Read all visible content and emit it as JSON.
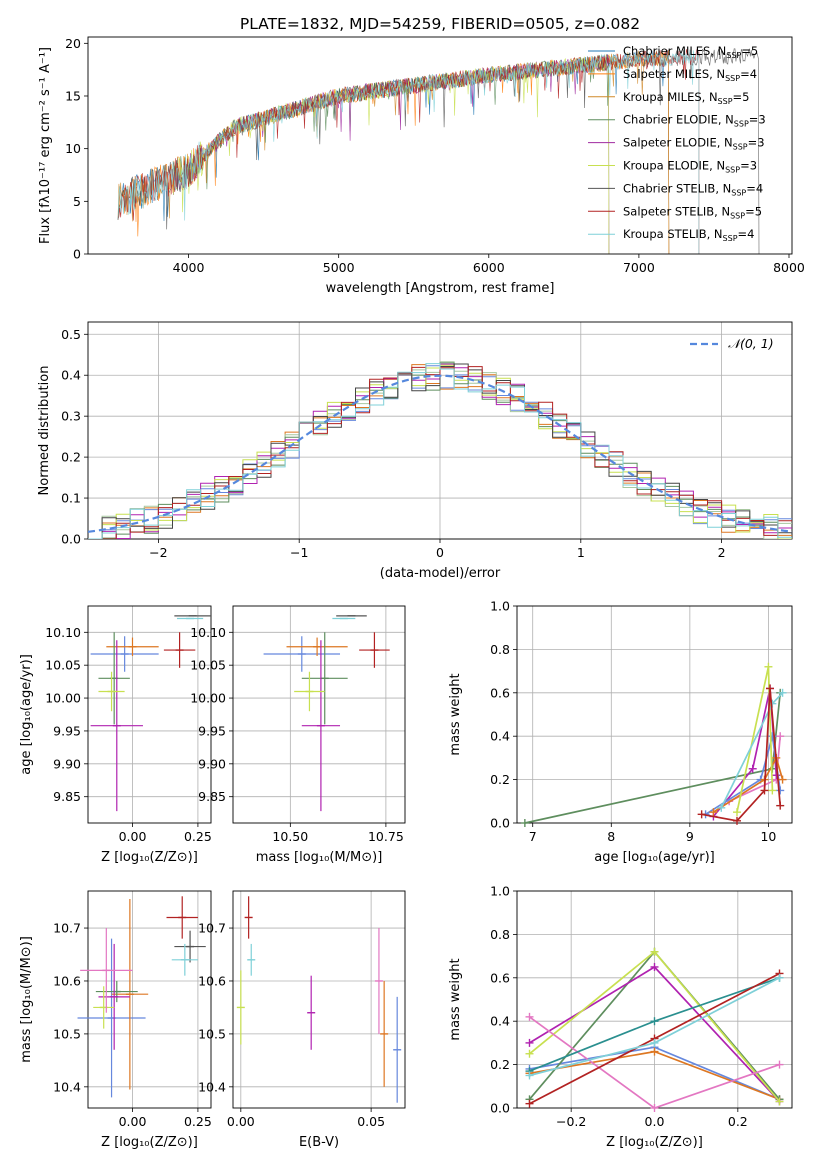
{
  "figure": {
    "title": "PLATE=1832, MJD=54259, FIBERID=0505, z=0.082"
  },
  "chart_data": [
    {
      "id": "spectrum",
      "type": "line",
      "xlabel": "wavelength [Angstrom, rest frame]",
      "ylabel": "Flux [fλ10⁻¹⁷ erg cm⁻² s⁻¹ A⁻¹]",
      "xlim": [
        3330,
        8020
      ],
      "ylim": [
        0,
        20.6
      ],
      "xticks": [
        4000,
        5000,
        6000,
        7000,
        8000
      ],
      "yticks": [
        0,
        5,
        10,
        15,
        20
      ],
      "grid": false,
      "legend_position": "right",
      "series": [
        {
          "name": "Chabrier MILES, N",
          "sub": "SSP",
          "tail": "=5",
          "color": "#1f77b4",
          "range": [
            3530,
            7200
          ]
        },
        {
          "name": "Salpeter MILES, N",
          "sub": "SSP",
          "tail": "=4",
          "color": "#ff7f0e",
          "range": [
            3530,
            7200
          ]
        },
        {
          "name": "Kroupa MILES, N",
          "sub": "SSP",
          "tail": "=5",
          "color": "#d08a2a",
          "range": [
            3530,
            7200
          ]
        },
        {
          "name": "Chabrier ELODIE, N",
          "sub": "SSP",
          "tail": "=3",
          "color": "#5e8e5e",
          "range": [
            3900,
            6800
          ]
        },
        {
          "name": "Salpeter ELODIE, N",
          "sub": "SSP",
          "tail": "=3",
          "color": "#a02aa0",
          "range": [
            3900,
            6800
          ]
        },
        {
          "name": "Kroupa ELODIE, N",
          "sub": "SSP",
          "tail": "=3",
          "color": "#c8e050",
          "range": [
            3900,
            6800
          ]
        },
        {
          "name": "Chabrier STELIB, N",
          "sub": "SSP",
          "tail": "=4",
          "color": "#555555",
          "range": [
            3530,
            7800
          ]
        },
        {
          "name": "Salpeter STELIB, N",
          "sub": "SSP",
          "tail": "=5",
          "color": "#b22222",
          "range": [
            3530,
            7400
          ]
        },
        {
          "name": "Kroupa STELIB, N",
          "sub": "SSP",
          "tail": "=4",
          "color": "#7fd0d8",
          "range": [
            3530,
            7400
          ]
        }
      ]
    },
    {
      "id": "residuals",
      "type": "histogram",
      "xlabel": "(data-model)/error",
      "ylabel": "Normed distribution",
      "xlim": [
        -2.5,
        2.5
      ],
      "ylim": [
        0,
        0.53
      ],
      "xticks": [
        -2,
        -1,
        0,
        1,
        2
      ],
      "xticklabels": [
        "−2",
        "−1",
        "0",
        "1",
        "2"
      ],
      "yticks": [
        0,
        0.1,
        0.2,
        0.3,
        0.4,
        0.5
      ],
      "yticklabels": [
        "0.0",
        "0.1",
        "0.2",
        "0.3",
        "0.4",
        "0.5"
      ],
      "grid": true,
      "bin_width": 0.1,
      "legend": "𝒩(0, 1)",
      "legend_position": "top-right",
      "colors": [
        "#6688dd",
        "#dd7722",
        "#a8c8a0",
        "#5e8e5e",
        "#b022b0",
        "#c8e050",
        "#444444",
        "#b22222",
        "#7fd0d8"
      ]
    },
    {
      "id": "age_vs_z",
      "type": "errorbar",
      "xlabel": "Z [log₁₀(Z/Z⊙)]",
      "ylabel": "age  [log₁₀(age/yr)]",
      "xlim": [
        -0.17,
        0.3
      ],
      "ylim": [
        9.81,
        10.14
      ],
      "xticks": [
        0,
        0.25
      ],
      "xticklabels": [
        "0.00",
        "0.25"
      ],
      "yticks": [
        9.85,
        9.9,
        9.95,
        10.0,
        10.05,
        10.1
      ],
      "yticklabels": [
        "9.85",
        "9.90",
        "9.95",
        "10.00",
        "10.05",
        "10.10"
      ],
      "grid": true,
      "points": [
        {
          "x": -0.03,
          "y": 10.067,
          "xerr": 0.13,
          "yerr": 0.027,
          "color": "#6688dd"
        },
        {
          "x": 0.0,
          "y": 10.078,
          "xerr": 0.1,
          "yerr": 0.014,
          "color": "#dd7722"
        },
        {
          "x": -0.07,
          "y": 10.03,
          "xerr": 0.06,
          "yerr": 0.07,
          "color": "#5e8e5e"
        },
        {
          "x": -0.06,
          "y": 9.958,
          "xerr": 0.1,
          "yerr": 0.13,
          "color": "#b022b0"
        },
        {
          "x": -0.08,
          "y": 10.01,
          "xerr": 0.05,
          "yerr": 0.03,
          "color": "#c8e050"
        },
        {
          "x": 0.23,
          "y": 10.125,
          "xerr": 0.07,
          "yerr": 0.0,
          "color": "#555555"
        },
        {
          "x": 0.18,
          "y": 10.073,
          "xerr": 0.06,
          "yerr": 0.027,
          "color": "#b22222"
        },
        {
          "x": 0.22,
          "y": 10.121,
          "xerr": 0.05,
          "yerr": 0.0,
          "color": "#7fd0d8"
        }
      ]
    },
    {
      "id": "age_vs_mass",
      "type": "errorbar",
      "xlabel": "mass [log₁₀(M/M⊙)]",
      "ylabel": "",
      "xlim": [
        10.35,
        10.8
      ],
      "ylim": [
        9.81,
        10.14
      ],
      "xticks": [
        10.5,
        10.75
      ],
      "xticklabels": [
        "10.50",
        "10.75"
      ],
      "yticks": [
        9.85,
        9.9,
        9.95,
        10.0,
        10.05,
        10.1
      ],
      "yticklabels": [
        "9.85",
        "9.90",
        "9.95",
        "10.00",
        "10.05",
        "10.10"
      ],
      "grid": true,
      "points": [
        {
          "x": 10.53,
          "y": 10.067,
          "xerr": 0.1,
          "yerr": 0.027,
          "color": "#6688dd"
        },
        {
          "x": 10.57,
          "y": 10.078,
          "xerr": 0.08,
          "yerr": 0.014,
          "color": "#dd7722"
        },
        {
          "x": 10.59,
          "y": 10.03,
          "xerr": 0.06,
          "yerr": 0.07,
          "color": "#5e8e5e"
        },
        {
          "x": 10.58,
          "y": 9.958,
          "xerr": 0.05,
          "yerr": 0.13,
          "color": "#b022b0"
        },
        {
          "x": 10.55,
          "y": 10.01,
          "xerr": 0.04,
          "yerr": 0.03,
          "color": "#c8e050"
        },
        {
          "x": 10.66,
          "y": 10.125,
          "xerr": 0.04,
          "yerr": 0.0,
          "color": "#555555"
        },
        {
          "x": 10.72,
          "y": 10.073,
          "xerr": 0.04,
          "yerr": 0.027,
          "color": "#b22222"
        },
        {
          "x": 10.64,
          "y": 10.121,
          "xerr": 0.03,
          "yerr": 0.0,
          "color": "#7fd0d8"
        }
      ]
    },
    {
      "id": "weight_vs_age",
      "type": "line",
      "xlabel": "age  [log₁₀(age/yr)]",
      "ylabel": "mass weight",
      "xlim": [
        6.8,
        10.3
      ],
      "ylim": [
        0,
        1
      ],
      "xticks": [
        7,
        8,
        9,
        10
      ],
      "yticks": [
        0,
        0.2,
        0.4,
        0.6,
        0.8,
        1.0
      ],
      "yticklabels": [
        "0.0",
        "0.2",
        "0.4",
        "0.6",
        "0.8",
        "1.0"
      ],
      "grid": true,
      "series": [
        {
          "color": "#5e8e5e",
          "x": [
            6.9,
            10.05,
            10.15
          ],
          "y": [
            0.0,
            0.25,
            0.6
          ]
        },
        {
          "color": "#e377c2",
          "x": [
            9.5,
            10.1,
            10.15
          ],
          "y": [
            0.1,
            0.2,
            0.4
          ]
        },
        {
          "color": "#b022b0",
          "x": [
            9.3,
            9.8,
            10.02,
            10.1
          ],
          "y": [
            0.03,
            0.25,
            0.62,
            0.22
          ]
        },
        {
          "color": "#6688dd",
          "x": [
            9.2,
            9.9,
            10.05,
            10.15
          ],
          "y": [
            0.04,
            0.2,
            0.4,
            0.15
          ]
        },
        {
          "color": "#dd7722",
          "x": [
            9.3,
            9.95,
            10.1,
            10.18
          ],
          "y": [
            0.05,
            0.2,
            0.3,
            0.2
          ]
        },
        {
          "color": "#c8e050",
          "x": [
            9.6,
            10.0,
            10.05
          ],
          "y": [
            0.05,
            0.72,
            0.15
          ]
        },
        {
          "color": "#7fd0d8",
          "x": [
            9.4,
            10.05,
            10.18
          ],
          "y": [
            0.07,
            0.55,
            0.6
          ]
        },
        {
          "color": "#b22222",
          "x": [
            9.15,
            9.6,
            9.95,
            10.02,
            10.15
          ],
          "y": [
            0.04,
            0.01,
            0.15,
            0.62,
            0.08
          ]
        }
      ]
    },
    {
      "id": "mass_vs_z",
      "type": "errorbar",
      "xlabel": "Z [log₁₀(Z/Z⊙)]",
      "ylabel": "mass [log₁₀(M/M⊙)]",
      "xlim": [
        -0.17,
        0.3
      ],
      "ylim": [
        10.36,
        10.77
      ],
      "xticks": [
        0,
        0.25
      ],
      "xticklabels": [
        "0.00",
        "0.25"
      ],
      "yticks": [
        10.4,
        10.5,
        10.6,
        10.7
      ],
      "yticklabels": [
        "10.4",
        "10.5",
        "10.6",
        "10.7"
      ],
      "grid": true,
      "points": [
        {
          "x": -0.08,
          "y": 10.53,
          "xerr": 0.13,
          "yerr": 0.15,
          "color": "#6688dd"
        },
        {
          "x": -0.01,
          "y": 10.575,
          "xerr": 0.07,
          "yerr": 0.18,
          "color": "#dd7722"
        },
        {
          "x": -0.06,
          "y": 10.58,
          "xerr": 0.08,
          "yerr": 0.02,
          "color": "#5e8e5e"
        },
        {
          "x": -0.07,
          "y": 10.57,
          "xerr": 0.06,
          "yerr": 0.1,
          "color": "#b022b0"
        },
        {
          "x": -0.11,
          "y": 10.55,
          "xerr": 0.04,
          "yerr": 0.04,
          "color": "#c8e050"
        },
        {
          "x": -0.1,
          "y": 10.62,
          "xerr": 0.1,
          "yerr": 0.08,
          "color": "#e377c2"
        },
        {
          "x": 0.22,
          "y": 10.665,
          "xerr": 0.06,
          "yerr": 0.03,
          "color": "#555555"
        },
        {
          "x": 0.19,
          "y": 10.72,
          "xerr": 0.06,
          "yerr": 0.04,
          "color": "#b22222"
        },
        {
          "x": 0.2,
          "y": 10.64,
          "xerr": 0.05,
          "yerr": 0.03,
          "color": "#7fd0d8"
        }
      ]
    },
    {
      "id": "mass_vs_ebv",
      "type": "errorbar",
      "xlabel": "E(B-V)",
      "ylabel": "",
      "xlim": [
        -0.003,
        0.063
      ],
      "ylim": [
        10.36,
        10.77
      ],
      "xticks": [
        0,
        0.05
      ],
      "xticklabels": [
        "0.00",
        "0.05"
      ],
      "yticks": [
        10.4,
        10.5,
        10.6,
        10.7
      ],
      "yticklabels": [
        "10.4",
        "10.5",
        "10.6",
        "10.7"
      ],
      "grid": true,
      "points": [
        {
          "x": 0.0,
          "y": 10.55,
          "xerr": 0,
          "yerr": 0.07,
          "color": "#c8e050"
        },
        {
          "x": 0.003,
          "y": 10.72,
          "xerr": 0,
          "yerr": 0.04,
          "color": "#b22222"
        },
        {
          "x": 0.004,
          "y": 10.64,
          "xerr": 0,
          "yerr": 0.03,
          "color": "#7fd0d8"
        },
        {
          "x": 0.027,
          "y": 10.54,
          "xerr": 0,
          "yerr": 0.07,
          "color": "#b022b0"
        },
        {
          "x": 0.053,
          "y": 10.6,
          "xerr": 0,
          "yerr": 0.1,
          "color": "#e377c2"
        },
        {
          "x": 0.055,
          "y": 10.5,
          "xerr": 0,
          "yerr": 0.1,
          "color": "#dd7722"
        },
        {
          "x": 0.06,
          "y": 10.47,
          "xerr": 0,
          "yerr": 0.1,
          "color": "#6688dd"
        }
      ]
    },
    {
      "id": "weight_vs_z",
      "type": "line",
      "xlabel": "Z [log₁₀(Z/Z⊙)]",
      "ylabel": "mass weight",
      "xlim": [
        -0.33,
        0.33
      ],
      "ylim": [
        0,
        1
      ],
      "xticks": [
        -0.2,
        0,
        0.2
      ],
      "xticklabels": [
        "−0.2",
        "0.0",
        "0.2"
      ],
      "yticks": [
        0,
        0.2,
        0.4,
        0.6,
        0.8,
        1.0
      ],
      "yticklabels": [
        "0.0",
        "0.2",
        "0.4",
        "0.6",
        "0.8",
        "1.0"
      ],
      "grid": true,
      "series": [
        {
          "color": "#6688dd",
          "x": [
            -0.3,
            0.0,
            0.3
          ],
          "y": [
            0.18,
            0.28,
            0.04
          ]
        },
        {
          "color": "#dd7722",
          "x": [
            -0.3,
            0.0,
            0.3
          ],
          "y": [
            0.16,
            0.26,
            0.04
          ]
        },
        {
          "color": "#5e8e5e",
          "x": [
            -0.3,
            0.0,
            0.3
          ],
          "y": [
            0.04,
            0.72,
            0.04
          ]
        },
        {
          "color": "#b022b0",
          "x": [
            -0.3,
            0.0,
            0.3
          ],
          "y": [
            0.3,
            0.65,
            0.03
          ]
        },
        {
          "color": "#c8e050",
          "x": [
            -0.3,
            0.0,
            0.3
          ],
          "y": [
            0.25,
            0.72,
            0.03
          ]
        },
        {
          "color": "#e377c2",
          "x": [
            -0.3,
            0.0,
            0.3
          ],
          "y": [
            0.42,
            0.0,
            0.2
          ]
        },
        {
          "color": "#2a8f8f",
          "x": [
            -0.3,
            0.0,
            0.3
          ],
          "y": [
            0.17,
            0.4,
            0.6
          ]
        },
        {
          "color": "#b22222",
          "x": [
            -0.3,
            0.0,
            0.3
          ],
          "y": [
            0.02,
            0.32,
            0.62
          ]
        },
        {
          "color": "#7fd0d8",
          "x": [
            -0.3,
            0.0,
            0.3
          ],
          "y": [
            0.15,
            0.3,
            0.6
          ]
        }
      ]
    }
  ]
}
